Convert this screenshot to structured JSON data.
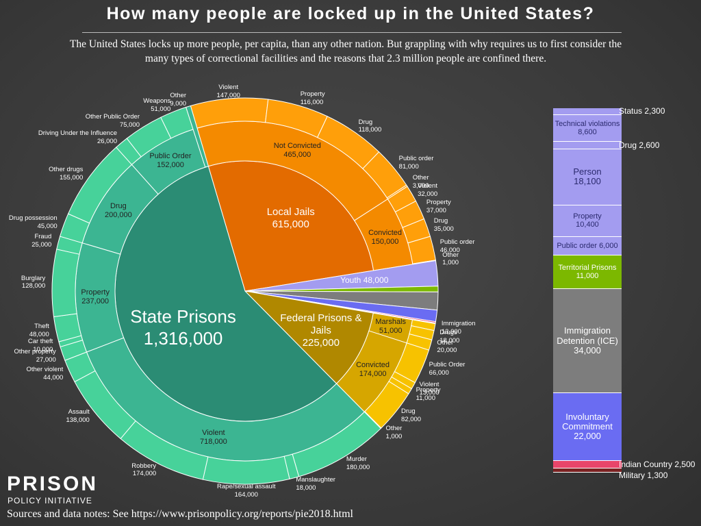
{
  "chart_data": {
    "type": "sunburst",
    "title": "How many people are locked up in the United States?",
    "subtitle": "The United States locks up more people, per capita, than any other nation.  But grappling with why requires us to first consider the many types of correctional facilities and the reasons that 2.3 million people are confined there.",
    "facilities": [
      {
        "name": "Local Jails",
        "value": 615000,
        "value_label": "615,000",
        "colors": [
          "#e36b00",
          "#f48a00",
          "#ff9f0a"
        ],
        "groups": [
          {
            "name": "Not Convicted",
            "value": 465000,
            "value_label": "465,000",
            "items": [
              {
                "name": "Violent",
                "value": 147000,
                "value_label": "147,000"
              },
              {
                "name": "Property",
                "value": 116000,
                "value_label": "116,000"
              },
              {
                "name": "Drug",
                "value": 118000,
                "value_label": "118,000"
              },
              {
                "name": "Public order",
                "value": 81000,
                "value_label": "81,000"
              },
              {
                "name": "Other",
                "value": 3000,
                "value_label": "3,000"
              }
            ]
          },
          {
            "name": "Convicted",
            "value": 150000,
            "value_label": "150,000",
            "items": [
              {
                "name": "Violent",
                "value": 32000,
                "value_label": "32,000"
              },
              {
                "name": "Property",
                "value": 37000,
                "value_label": "37,000"
              },
              {
                "name": "Drug",
                "value": 35000,
                "value_label": "35,000"
              },
              {
                "name": "Public order",
                "value": 46000,
                "value_label": "46,000"
              },
              {
                "name": "Other",
                "value": 1000,
                "value_label": "1,000"
              }
            ]
          }
        ]
      },
      {
        "name": "Youth",
        "value": 48000,
        "value_label": "48,000",
        "colors": [
          "#a39cf0"
        ],
        "text_color": "#2b2a6e",
        "breakdown": [
          {
            "name": "Status",
            "value": 2300,
            "value_label": "2,300"
          },
          {
            "name": "Technical violations",
            "value": 8600,
            "value_label": "8,600"
          },
          {
            "name": "Drug",
            "value": 2600,
            "value_label": "2,600"
          },
          {
            "name": "Person",
            "value": 18100,
            "value_label": "18,100"
          },
          {
            "name": "Property",
            "value": 10400,
            "value_label": "10,400"
          },
          {
            "name": "Public order",
            "value": 6000,
            "value_label": "6,000"
          }
        ]
      },
      {
        "name": "Territorial Prisons",
        "value": 11000,
        "value_label": "11,000",
        "colors": [
          "#7cb800"
        ],
        "text_color": "#ffffff"
      },
      {
        "name": "Immigration Detention (ICE)",
        "value": 34000,
        "value_label": "34,000",
        "colors": [
          "#7d7d7d"
        ],
        "text_color": "#ffffff"
      },
      {
        "name": "Involuntary Commitment",
        "value": 22000,
        "value_label": "22,000",
        "colors": [
          "#6a6cf2"
        ],
        "text_color": "#ffffff"
      },
      {
        "name": "Indian Country",
        "value": 2500,
        "value_label": "2,500",
        "colors": [
          "#e8456a"
        ],
        "text_color": "#ffffff"
      },
      {
        "name": "Military",
        "value": 1300,
        "value_label": "1,300",
        "colors": [
          "#7a2222"
        ],
        "text_color": "#ffffff"
      },
      {
        "name": "Federal Prisons & Jails",
        "value": 225000,
        "value_label": "225,000",
        "colors": [
          "#b08800",
          "#d6a600",
          "#f7c200"
        ],
        "groups": [
          {
            "name": "Marshals",
            "value": 51000,
            "value_label": "51,000",
            "items": [
              {
                "name": "Immigration",
                "value": 13000,
                "value_label": "13,000"
              },
              {
                "name": "Drugs",
                "value": 18000,
                "value_label": "18,000"
              },
              {
                "name": "Other",
                "value": 20000,
                "value_label": "20,000"
              }
            ]
          },
          {
            "name": "Convicted",
            "value": 174000,
            "value_label": "174,000",
            "items": [
              {
                "name": "Public Order",
                "value": 66000,
                "value_label": "66,000"
              },
              {
                "name": "Violent",
                "value": 13000,
                "value_label": "13,000"
              },
              {
                "name": "Property",
                "value": 11000,
                "value_label": "11,000"
              },
              {
                "name": "Drug",
                "value": 82000,
                "value_label": "82,000"
              },
              {
                "name": "Other",
                "value": 1000,
                "value_label": "1,000"
              }
            ]
          }
        ]
      },
      {
        "name": "State Prisons",
        "value": 1316000,
        "value_label": "1,316,000",
        "colors": [
          "#2b8c74",
          "#3cb592",
          "#47d29a"
        ],
        "groups": [
          {
            "name": "Violent",
            "value": 718000,
            "value_label": "718,000",
            "items": [
              {
                "name": "Murder",
                "value": 180000,
                "value_label": "180,000"
              },
              {
                "name": "Manslaughter",
                "value": 18000,
                "value_label": "18,000"
              },
              {
                "name": "Rape/sexual assault",
                "value": 164000,
                "value_label": "164,000"
              },
              {
                "name": "Robbery",
                "value": 174000,
                "value_label": "174,000"
              },
              {
                "name": "Assault",
                "value": 138000,
                "value_label": "138,000"
              },
              {
                "name": "Other violent",
                "value": 44000,
                "value_label": "44,000"
              }
            ]
          },
          {
            "name": "Property",
            "value": 237000,
            "value_label": "237,000",
            "items": [
              {
                "name": "Other property",
                "value": 27000,
                "value_label": "27,000"
              },
              {
                "name": "Car theft",
                "value": 10000,
                "value_label": "10,000"
              },
              {
                "name": "Theft",
                "value": 48000,
                "value_label": "48,000"
              },
              {
                "name": "Burglary",
                "value": 128000,
                "value_label": "128,000"
              },
              {
                "name": "Fraud",
                "value": 25000,
                "value_label": "25,000"
              }
            ]
          },
          {
            "name": "Drug",
            "value": 200000,
            "value_label": "200,000",
            "items": [
              {
                "name": "Drug possession",
                "value": 45000,
                "value_label": "45,000"
              },
              {
                "name": "Other drugs",
                "value": 155000,
                "value_label": "155,000"
              }
            ]
          },
          {
            "name": "Public Order",
            "value": 152000,
            "value_label": "152,000",
            "items": [
              {
                "name": "Driving Under the Influence",
                "value": 26000,
                "value_label": "26,000"
              },
              {
                "name": "Other Public Order",
                "value": 75000,
                "value_label": "75,000"
              },
              {
                "name": "Weapons",
                "value": 51000,
                "value_label": "51,000"
              }
            ]
          },
          {
            "name": "Other",
            "value": 9000,
            "value_label": "9,000"
          }
        ]
      }
    ]
  },
  "logo": {
    "name": "PRISON",
    "subname": "POLICY INITIATIVE"
  },
  "source": "Sources and data notes: See https://www.prisonpolicy.org/reports/pie2018.html"
}
